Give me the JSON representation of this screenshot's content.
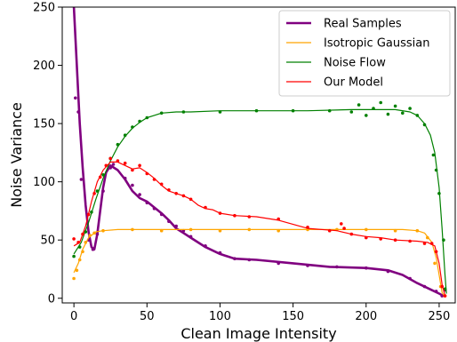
{
  "chart_data": {
    "type": "line",
    "xlabel": "Clean Image Intensity",
    "ylabel": "Noise Variance",
    "xlim": [
      -8,
      261
    ],
    "ylim": [
      -4,
      250
    ],
    "xticks": [
      0,
      50,
      100,
      150,
      200,
      250
    ],
    "yticks": [
      0,
      50,
      100,
      150,
      200,
      250
    ],
    "grid": false,
    "legend_position": "top-right",
    "series": [
      {
        "name": "Real Samples",
        "color": "#800080",
        "line_style": "thick",
        "fit": [
          [
            0,
            250
          ],
          [
            2,
            200
          ],
          [
            4,
            150
          ],
          [
            6,
            112
          ],
          [
            8,
            80
          ],
          [
            10,
            57
          ],
          [
            12,
            44
          ],
          [
            14,
            42
          ],
          [
            16,
            55
          ],
          [
            18,
            75
          ],
          [
            20,
            95
          ],
          [
            22,
            108
          ],
          [
            25,
            114
          ],
          [
            30,
            110
          ],
          [
            35,
            102
          ],
          [
            40,
            92
          ],
          [
            45,
            86
          ],
          [
            50,
            83
          ],
          [
            55,
            78
          ],
          [
            60,
            73
          ],
          [
            65,
            67
          ],
          [
            70,
            60
          ],
          [
            75,
            56
          ],
          [
            80,
            52
          ],
          [
            90,
            44
          ],
          [
            100,
            38
          ],
          [
            110,
            34
          ],
          [
            125,
            33
          ],
          [
            150,
            30
          ],
          [
            175,
            27
          ],
          [
            200,
            26
          ],
          [
            215,
            24
          ],
          [
            225,
            20
          ],
          [
            235,
            13
          ],
          [
            245,
            7
          ],
          [
            250,
            4
          ],
          [
            253,
            2
          ]
        ],
        "samples": [
          [
            1,
            172
          ],
          [
            3,
            160
          ],
          [
            5,
            102
          ],
          [
            10,
            50
          ],
          [
            13,
            42
          ],
          [
            16,
            55
          ],
          [
            20,
            92
          ],
          [
            25,
            112
          ],
          [
            27,
            115
          ],
          [
            35,
            103
          ],
          [
            40,
            97
          ],
          [
            45,
            89
          ],
          [
            50,
            82
          ],
          [
            55,
            77
          ],
          [
            60,
            72
          ],
          [
            65,
            66
          ],
          [
            70,
            62
          ],
          [
            75,
            58
          ],
          [
            80,
            53
          ],
          [
            90,
            45
          ],
          [
            100,
            39
          ],
          [
            110,
            34
          ],
          [
            120,
            33
          ],
          [
            140,
            30
          ],
          [
            160,
            28
          ],
          [
            180,
            27
          ],
          [
            200,
            26
          ],
          [
            215,
            23
          ],
          [
            230,
            17
          ],
          [
            240,
            10
          ],
          [
            248,
            6
          ],
          [
            252,
            2
          ],
          [
            254,
            7
          ]
        ]
      },
      {
        "name": "Isotropic Gaussian",
        "color": "#FFA500",
        "line_style": "thin",
        "fit": [
          [
            0,
            22
          ],
          [
            3,
            30
          ],
          [
            6,
            42
          ],
          [
            10,
            52
          ],
          [
            15,
            57
          ],
          [
            20,
            58
          ],
          [
            30,
            59
          ],
          [
            60,
            59
          ],
          [
            100,
            59
          ],
          [
            150,
            59
          ],
          [
            180,
            59
          ],
          [
            200,
            59
          ],
          [
            225,
            59
          ],
          [
            235,
            58
          ],
          [
            240,
            56
          ],
          [
            245,
            48
          ],
          [
            248,
            35
          ],
          [
            250,
            20
          ],
          [
            252,
            5
          ],
          [
            254,
            1
          ]
        ],
        "samples": [
          [
            0,
            17
          ],
          [
            2,
            24
          ],
          [
            4,
            33
          ],
          [
            6,
            40
          ],
          [
            8,
            48
          ],
          [
            11,
            54
          ],
          [
            14,
            56
          ],
          [
            20,
            58
          ],
          [
            40,
            59
          ],
          [
            60,
            58
          ],
          [
            80,
            59
          ],
          [
            100,
            58
          ],
          [
            120,
            59
          ],
          [
            140,
            58
          ],
          [
            160,
            59
          ],
          [
            180,
            59
          ],
          [
            200,
            59
          ],
          [
            220,
            58
          ],
          [
            235,
            58
          ],
          [
            242,
            52
          ],
          [
            247,
            30
          ],
          [
            251,
            10
          ],
          [
            254,
            2
          ]
        ]
      },
      {
        "name": "Noise Flow",
        "color": "#008000",
        "line_style": "thin",
        "fit": [
          [
            0,
            38
          ],
          [
            5,
            48
          ],
          [
            10,
            65
          ],
          [
            15,
            85
          ],
          [
            20,
            103
          ],
          [
            25,
            118
          ],
          [
            30,
            130
          ],
          [
            35,
            139
          ],
          [
            40,
            146
          ],
          [
            45,
            151
          ],
          [
            50,
            155
          ],
          [
            55,
            157
          ],
          [
            60,
            159
          ],
          [
            70,
            160
          ],
          [
            80,
            160
          ],
          [
            100,
            161
          ],
          [
            130,
            161
          ],
          [
            160,
            161
          ],
          [
            190,
            162
          ],
          [
            220,
            162
          ],
          [
            230,
            160
          ],
          [
            235,
            157
          ],
          [
            240,
            150
          ],
          [
            244,
            140
          ],
          [
            247,
            125
          ],
          [
            250,
            95
          ],
          [
            252,
            60
          ],
          [
            254,
            20
          ],
          [
            255,
            4
          ]
        ],
        "samples": [
          [
            0,
            36
          ],
          [
            4,
            44
          ],
          [
            8,
            57
          ],
          [
            12,
            74
          ],
          [
            16,
            92
          ],
          [
            20,
            106
          ],
          [
            25,
            120
          ],
          [
            30,
            132
          ],
          [
            35,
            140
          ],
          [
            40,
            147
          ],
          [
            45,
            152
          ],
          [
            50,
            155
          ],
          [
            60,
            159
          ],
          [
            75,
            160
          ],
          [
            100,
            160
          ],
          [
            125,
            161
          ],
          [
            150,
            161
          ],
          [
            175,
            161
          ],
          [
            190,
            160
          ],
          [
            195,
            166
          ],
          [
            200,
            157
          ],
          [
            205,
            163
          ],
          [
            210,
            168
          ],
          [
            215,
            158
          ],
          [
            220,
            165
          ],
          [
            225,
            159
          ],
          [
            230,
            163
          ],
          [
            235,
            157
          ],
          [
            240,
            149
          ],
          [
            246,
            123
          ],
          [
            248,
            110
          ],
          [
            250,
            90
          ],
          [
            253,
            50
          ],
          [
            254,
            8
          ]
        ]
      },
      {
        "name": "Our Model",
        "color": "#FF0000",
        "line_style": "thin",
        "fit": [
          [
            0,
            45
          ],
          [
            4,
            48
          ],
          [
            8,
            62
          ],
          [
            12,
            83
          ],
          [
            16,
            100
          ],
          [
            20,
            110
          ],
          [
            25,
            117
          ],
          [
            30,
            117
          ],
          [
            35,
            114
          ],
          [
            40,
            111
          ],
          [
            45,
            112
          ],
          [
            50,
            108
          ],
          [
            55,
            103
          ],
          [
            60,
            97
          ],
          [
            65,
            92
          ],
          [
            70,
            90
          ],
          [
            75,
            88
          ],
          [
            80,
            85
          ],
          [
            85,
            80
          ],
          [
            90,
            77
          ],
          [
            95,
            76
          ],
          [
            100,
            73
          ],
          [
            110,
            71
          ],
          [
            125,
            70
          ],
          [
            140,
            67
          ],
          [
            160,
            60
          ],
          [
            180,
            58
          ],
          [
            190,
            55
          ],
          [
            200,
            53
          ],
          [
            210,
            52
          ],
          [
            220,
            50
          ],
          [
            235,
            49
          ],
          [
            242,
            48
          ],
          [
            247,
            45
          ],
          [
            250,
            30
          ],
          [
            252,
            12
          ],
          [
            254,
            2
          ]
        ],
        "samples": [
          [
            0,
            51
          ],
          [
            3,
            48
          ],
          [
            6,
            55
          ],
          [
            10,
            72
          ],
          [
            14,
            90
          ],
          [
            18,
            104
          ],
          [
            22,
            114
          ],
          [
            25,
            120
          ],
          [
            30,
            118
          ],
          [
            35,
            116
          ],
          [
            40,
            110
          ],
          [
            45,
            114
          ],
          [
            50,
            107
          ],
          [
            55,
            102
          ],
          [
            60,
            98
          ],
          [
            65,
            93
          ],
          [
            70,
            90
          ],
          [
            75,
            88
          ],
          [
            80,
            85
          ],
          [
            90,
            78
          ],
          [
            100,
            73
          ],
          [
            110,
            71
          ],
          [
            120,
            70
          ],
          [
            140,
            68
          ],
          [
            160,
            61
          ],
          [
            175,
            58
          ],
          [
            183,
            64
          ],
          [
            185,
            60
          ],
          [
            190,
            55
          ],
          [
            200,
            52
          ],
          [
            210,
            51
          ],
          [
            220,
            50
          ],
          [
            230,
            49
          ],
          [
            240,
            47
          ],
          [
            245,
            47
          ],
          [
            248,
            40
          ],
          [
            252,
            10
          ],
          [
            254,
            2
          ]
        ]
      }
    ]
  }
}
